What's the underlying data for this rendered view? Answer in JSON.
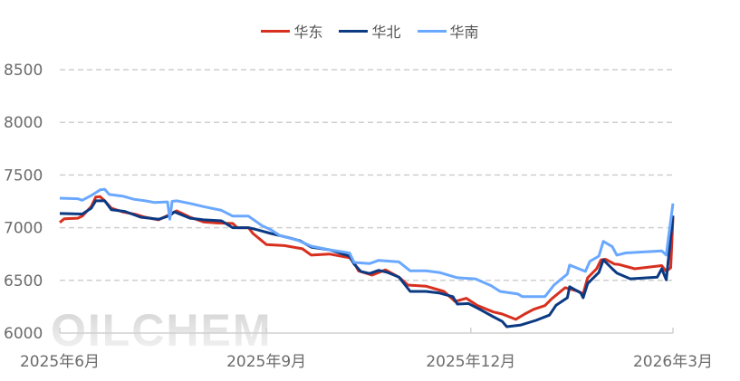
{
  "chart_data": {
    "type": "line",
    "title": "",
    "xlabel": "",
    "ylabel": "",
    "ylim": [
      6000,
      8500
    ],
    "yticks": [
      "6000",
      "6500",
      "7000",
      "7500",
      "8000",
      "8500"
    ],
    "xlim": [
      "2025-06-01",
      "2026-03-01"
    ],
    "xticks": [
      {
        "date": "2025-06-01",
        "label": "2025年6月"
      },
      {
        "date": "2025-09-01",
        "label": "2025年9月"
      },
      {
        "date": "2025-12-01",
        "label": "2025年12月"
      },
      {
        "date": "2026-03-01",
        "label": "2026年3月"
      }
    ],
    "grid": "horizontal-dashed",
    "legend_position": "top",
    "watermark": "OILCHEM",
    "series": [
      {
        "name": "华东",
        "color": "#d7301f",
        "points": [
          [
            "2025-06-01",
            7050
          ],
          [
            "2025-06-03",
            7085
          ],
          [
            "2025-06-09",
            7090
          ],
          [
            "2025-06-11",
            7110
          ],
          [
            "2025-06-15",
            7200
          ],
          [
            "2025-06-17",
            7290
          ],
          [
            "2025-06-19",
            7295
          ],
          [
            "2025-06-21",
            7255
          ],
          [
            "2025-06-24",
            7185
          ],
          [
            "2025-06-29",
            7150
          ],
          [
            "2025-07-05",
            7125
          ],
          [
            "2025-07-09",
            7100
          ],
          [
            "2025-07-15",
            7075
          ],
          [
            "2025-07-20",
            7125
          ],
          [
            "2025-07-23",
            7160
          ],
          [
            "2025-07-29",
            7100
          ],
          [
            "2025-08-04",
            7055
          ],
          [
            "2025-08-10",
            7045
          ],
          [
            "2025-08-17",
            7040
          ],
          [
            "2025-08-19",
            7000
          ],
          [
            "2025-08-24",
            7000
          ],
          [
            "2025-08-26",
            6945
          ],
          [
            "2025-09-01",
            6840
          ],
          [
            "2025-09-09",
            6830
          ],
          [
            "2025-09-17",
            6800
          ],
          [
            "2025-09-21",
            6740
          ],
          [
            "2025-09-29",
            6750
          ],
          [
            "2025-10-08",
            6715
          ],
          [
            "2025-10-10",
            6670
          ],
          [
            "2025-10-12",
            6590
          ],
          [
            "2025-10-18",
            6550
          ],
          [
            "2025-10-24",
            6600
          ],
          [
            "2025-10-30",
            6530
          ],
          [
            "2025-11-03",
            6455
          ],
          [
            "2025-11-11",
            6445
          ],
          [
            "2025-11-19",
            6395
          ],
          [
            "2025-11-24",
            6300
          ],
          [
            "2025-11-29",
            6330
          ],
          [
            "2025-12-04",
            6260
          ],
          [
            "2025-12-11",
            6200
          ],
          [
            "2025-12-15",
            6180
          ],
          [
            "2025-12-21",
            6130
          ],
          [
            "2025-12-25",
            6180
          ],
          [
            "2025-12-29",
            6225
          ],
          [
            "2026-01-03",
            6260
          ],
          [
            "2026-01-06",
            6325
          ],
          [
            "2026-01-12",
            6430
          ],
          [
            "2026-01-18",
            6395
          ],
          [
            "2026-01-20",
            6370
          ],
          [
            "2026-01-22",
            6525
          ],
          [
            "2026-01-26",
            6610
          ],
          [
            "2026-01-28",
            6695
          ],
          [
            "2026-01-30",
            6700
          ],
          [
            "2026-02-03",
            6655
          ],
          [
            "2026-02-05",
            6650
          ],
          [
            "2026-02-12",
            6610
          ],
          [
            "2026-02-24",
            6640
          ],
          [
            "2026-02-26",
            6585
          ],
          [
            "2026-02-28",
            6620
          ],
          [
            "2026-03-01",
            7100
          ]
        ]
      },
      {
        "name": "华北",
        "color": "#0b3a82",
        "points": [
          [
            "2025-06-01",
            7135
          ],
          [
            "2025-06-11",
            7130
          ],
          [
            "2025-06-15",
            7185
          ],
          [
            "2025-06-17",
            7255
          ],
          [
            "2025-06-21",
            7255
          ],
          [
            "2025-06-24",
            7170
          ],
          [
            "2025-06-30",
            7155
          ],
          [
            "2025-07-07",
            7100
          ],
          [
            "2025-07-15",
            7080
          ],
          [
            "2025-07-20",
            7115
          ],
          [
            "2025-07-22",
            7150
          ],
          [
            "2025-07-29",
            7090
          ],
          [
            "2025-08-04",
            7075
          ],
          [
            "2025-08-12",
            7065
          ],
          [
            "2025-08-17",
            7000
          ],
          [
            "2025-08-24",
            7000
          ],
          [
            "2025-08-28",
            6980
          ],
          [
            "2025-09-03",
            6945
          ],
          [
            "2025-09-11",
            6905
          ],
          [
            "2025-09-16",
            6875
          ],
          [
            "2025-09-21",
            6815
          ],
          [
            "2025-09-29",
            6790
          ],
          [
            "2025-10-08",
            6730
          ],
          [
            "2025-10-10",
            6655
          ],
          [
            "2025-10-13",
            6585
          ],
          [
            "2025-10-17",
            6565
          ],
          [
            "2025-10-21",
            6595
          ],
          [
            "2025-10-25",
            6575
          ],
          [
            "2025-10-30",
            6530
          ],
          [
            "2025-11-04",
            6395
          ],
          [
            "2025-11-11",
            6395
          ],
          [
            "2025-11-17",
            6380
          ],
          [
            "2025-11-23",
            6345
          ],
          [
            "2025-11-25",
            6275
          ],
          [
            "2025-11-30",
            6280
          ],
          [
            "2025-12-05",
            6225
          ],
          [
            "2025-12-11",
            6155
          ],
          [
            "2025-12-15",
            6110
          ],
          [
            "2025-12-17",
            6060
          ],
          [
            "2025-12-23",
            6075
          ],
          [
            "2025-12-30",
            6120
          ],
          [
            "2026-01-05",
            6170
          ],
          [
            "2026-01-08",
            6265
          ],
          [
            "2026-01-13",
            6335
          ],
          [
            "2026-01-14",
            6440
          ],
          [
            "2026-01-19",
            6380
          ],
          [
            "2026-01-20",
            6335
          ],
          [
            "2026-01-22",
            6470
          ],
          [
            "2026-01-27",
            6575
          ],
          [
            "2026-01-29",
            6695
          ],
          [
            "2026-02-02",
            6610
          ],
          [
            "2026-02-04",
            6570
          ],
          [
            "2026-02-10",
            6515
          ],
          [
            "2026-02-22",
            6530
          ],
          [
            "2026-02-24",
            6610
          ],
          [
            "2026-02-26",
            6505
          ],
          [
            "2026-03-01",
            7115
          ]
        ]
      },
      {
        "name": "华南",
        "color": "#6aa8ff",
        "points": [
          [
            "2025-06-01",
            7280
          ],
          [
            "2025-06-09",
            7275
          ],
          [
            "2025-06-11",
            7260
          ],
          [
            "2025-06-15",
            7305
          ],
          [
            "2025-06-19",
            7360
          ],
          [
            "2025-06-21",
            7365
          ],
          [
            "2025-06-23",
            7315
          ],
          [
            "2025-06-29",
            7300
          ],
          [
            "2025-07-04",
            7270
          ],
          [
            "2025-07-09",
            7255
          ],
          [
            "2025-07-13",
            7240
          ],
          [
            "2025-07-19",
            7245
          ],
          [
            "2025-07-20",
            7080
          ],
          [
            "2025-07-21",
            7250
          ],
          [
            "2025-07-23",
            7255
          ],
          [
            "2025-07-29",
            7230
          ],
          [
            "2025-08-04",
            7200
          ],
          [
            "2025-08-12",
            7165
          ],
          [
            "2025-08-17",
            7110
          ],
          [
            "2025-08-24",
            7110
          ],
          [
            "2025-08-30",
            7020
          ],
          [
            "2025-09-03",
            6980
          ],
          [
            "2025-09-07",
            6925
          ],
          [
            "2025-09-15",
            6880
          ],
          [
            "2025-09-21",
            6825
          ],
          [
            "2025-09-29",
            6790
          ],
          [
            "2025-10-08",
            6760
          ],
          [
            "2025-10-10",
            6670
          ],
          [
            "2025-10-17",
            6660
          ],
          [
            "2025-10-21",
            6690
          ],
          [
            "2025-10-30",
            6675
          ],
          [
            "2025-11-04",
            6590
          ],
          [
            "2025-11-11",
            6590
          ],
          [
            "2025-11-17",
            6575
          ],
          [
            "2025-11-25",
            6525
          ],
          [
            "2025-12-03",
            6515
          ],
          [
            "2025-12-10",
            6450
          ],
          [
            "2025-12-14",
            6395
          ],
          [
            "2025-12-22",
            6370
          ],
          [
            "2025-12-24",
            6345
          ],
          [
            "2026-01-03",
            6345
          ],
          [
            "2026-01-07",
            6455
          ],
          [
            "2026-01-13",
            6560
          ],
          [
            "2026-01-14",
            6645
          ],
          [
            "2026-01-21",
            6585
          ],
          [
            "2026-01-23",
            6680
          ],
          [
            "2026-01-27",
            6730
          ],
          [
            "2026-01-29",
            6870
          ],
          [
            "2026-02-02",
            6820
          ],
          [
            "2026-02-04",
            6740
          ],
          [
            "2026-02-08",
            6760
          ],
          [
            "2026-02-24",
            6780
          ],
          [
            "2026-02-26",
            6740
          ],
          [
            "2026-02-27",
            6905
          ],
          [
            "2026-03-01",
            7230
          ]
        ]
      }
    ]
  }
}
